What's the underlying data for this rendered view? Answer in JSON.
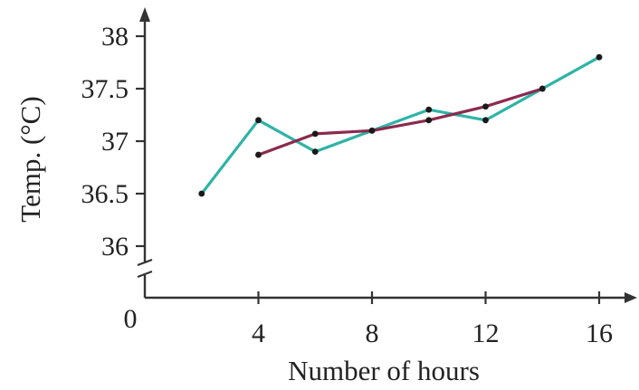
{
  "chart_data": {
    "type": "line",
    "xlabel": "Number of hours",
    "ylabel": "Temp. (°C)",
    "x_ticks": [
      "4",
      "8",
      "12",
      "16"
    ],
    "y_ticks": [
      "36",
      "36.5",
      "37",
      "37.5",
      "38"
    ],
    "origin_label": "0",
    "xlim": [
      0,
      17
    ],
    "ylim": [
      36,
      38
    ],
    "y_axis_break": true,
    "grid": false,
    "legend": "none",
    "series": [
      {
        "color": "#2fb3a6",
        "x": [
          2,
          4,
          6,
          8,
          10,
          12,
          14,
          16
        ],
        "y": [
          36.5,
          37.2,
          36.9,
          37.1,
          37.3,
          37.2,
          37.5,
          37.8
        ]
      },
      {
        "color": "#8b2a4d",
        "x": [
          4,
          6,
          8,
          10,
          12,
          14
        ],
        "y": [
          36.87,
          37.07,
          37.1,
          37.2,
          37.33,
          37.5
        ]
      }
    ]
  }
}
